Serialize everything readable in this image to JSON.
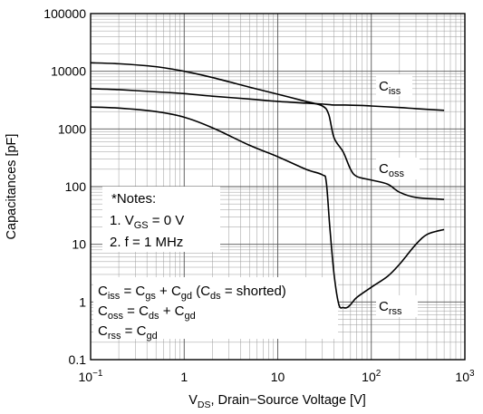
{
  "chart_data": {
    "type": "line",
    "title": "",
    "x_scale": "log",
    "y_scale": "log",
    "xlim": [
      0.1,
      1000
    ],
    "ylim": [
      0.1,
      100000
    ],
    "grid": true,
    "xlabel": {
      "main": "V",
      "sub": "DS",
      "rest": ", Drain−Source Voltage [V]"
    },
    "ylabel": "Capacitances [pF]",
    "x_ticks": [
      {
        "value": 0.1,
        "base": "10",
        "exp": "−1"
      },
      {
        "value": 1,
        "base": "1",
        "exp": ""
      },
      {
        "value": 10,
        "base": "10",
        "exp": ""
      },
      {
        "value": 100,
        "base": "10",
        "exp": "2"
      },
      {
        "value": 1000,
        "base": "10",
        "exp": "3"
      }
    ],
    "y_ticks": [
      {
        "value": 100000,
        "label": "100000"
      },
      {
        "value": 10000,
        "label": "10000"
      },
      {
        "value": 1000,
        "label": "1000"
      },
      {
        "value": 100,
        "label": "100"
      },
      {
        "value": 10,
        "label": "10"
      },
      {
        "value": 1,
        "label": "1"
      },
      {
        "value": 0.1,
        "label": "0.1"
      }
    ],
    "series": [
      {
        "key": "ciss",
        "label_main": "C",
        "label_sub": "iss",
        "x": [
          0.1,
          0.2,
          0.5,
          1,
          2,
          5,
          10,
          20,
          30,
          40,
          50,
          80,
          100,
          200,
          300,
          600
        ],
        "y": [
          5000,
          4800,
          4400,
          4100,
          3700,
          3300,
          3000,
          2800,
          2700,
          2600,
          2600,
          2550,
          2500,
          2350,
          2250,
          2100
        ]
      },
      {
        "key": "coss",
        "label_main": "C",
        "label_sub": "oss",
        "x": [
          0.1,
          0.2,
          0.5,
          1,
          2,
          5,
          10,
          20,
          30,
          35,
          40,
          50,
          60,
          70,
          100,
          150,
          200,
          300,
          600
        ],
        "y": [
          14000,
          13500,
          12000,
          10000,
          7800,
          5300,
          4000,
          3000,
          2500,
          1800,
          700,
          400,
          200,
          150,
          130,
          110,
          80,
          65,
          60
        ]
      },
      {
        "key": "crss",
        "label_main": "C",
        "label_sub": "rss",
        "x": [
          0.1,
          0.2,
          0.5,
          1,
          2,
          5,
          10,
          20,
          30,
          33,
          36,
          40,
          45,
          50,
          55,
          60,
          70,
          100,
          150,
          200,
          300,
          400,
          600
        ],
        "y": [
          2400,
          2300,
          2000,
          1600,
          1050,
          520,
          330,
          200,
          160,
          120,
          20,
          3,
          0.9,
          0.8,
          0.8,
          0.9,
          1.2,
          1.8,
          2.8,
          4.5,
          10,
          15,
          18
        ]
      }
    ],
    "annotations": {
      "notes": [
        "*Notes:"
      ],
      "note1": {
        "num": "1. ",
        "main": "V",
        "sub": "GS",
        "rest": " = 0 V"
      },
      "note2": {
        "text": "2. f = 1 MHz"
      },
      "eq1": [
        {
          "t": "C"
        },
        {
          "t": "iss",
          "sub": true
        },
        {
          "t": " = C"
        },
        {
          "t": "gs",
          "sub": true
        },
        {
          "t": " + C"
        },
        {
          "t": "gd",
          "sub": true
        },
        {
          "t": " (C"
        },
        {
          "t": "ds",
          "sub": true
        },
        {
          "t": " = shorted)"
        }
      ],
      "eq2": [
        {
          "t": "C"
        },
        {
          "t": "oss",
          "sub": true
        },
        {
          "t": " = C"
        },
        {
          "t": "ds",
          "sub": true
        },
        {
          "t": " + C"
        },
        {
          "t": "gd",
          "sub": true
        }
      ],
      "eq3": [
        {
          "t": "C"
        },
        {
          "t": "rss",
          "sub": true
        },
        {
          "t": " = C"
        },
        {
          "t": "gd",
          "sub": true
        }
      ]
    }
  }
}
